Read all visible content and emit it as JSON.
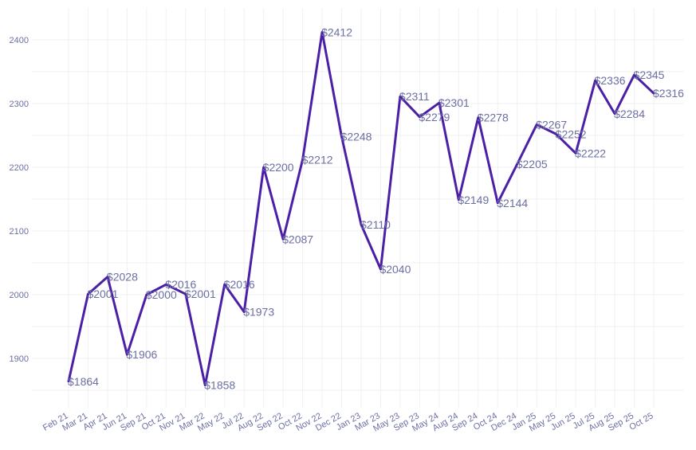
{
  "chart_data": {
    "type": "line",
    "title": "",
    "xlabel": "",
    "ylabel": "",
    "ylim": [
      1835,
      2430
    ],
    "yticks": [
      1900,
      2000,
      2100,
      2200,
      2300,
      2400
    ],
    "grid": true,
    "line_color": "#4b1fa6",
    "label_prefix": "$",
    "categories": [
      "Feb 21",
      "Mar 21",
      "Apr 21",
      "Jun 21",
      "Sep 21",
      "Oct 21",
      "Nov 21",
      "Mar 22",
      "May 22",
      "Jul 22",
      "Aug 22",
      "Sep 22",
      "Oct 22",
      "Nov 22",
      "Dec 22",
      "Jan 23",
      "Mar 23",
      "May 23",
      "Sep 23",
      "May 24",
      "Aug 24",
      "Sep 24",
      "Oct 24",
      "Dec 24",
      "Jan 25",
      "May 25",
      "Jun 25",
      "Jul 25",
      "Aug 25",
      "Sep 25",
      "Oct 25"
    ],
    "series": [
      {
        "values": [
          1864,
          2001,
          2028,
          1906,
          2000,
          2016,
          2001,
          1858,
          2016,
          1973,
          2200,
          2087,
          2212,
          2412,
          2248,
          2110,
          2040,
          2311,
          2279,
          2301,
          2149,
          2278,
          2144,
          2205,
          2267,
          2252,
          2222,
          2336,
          2284,
          2345,
          2316
        ]
      }
    ]
  }
}
